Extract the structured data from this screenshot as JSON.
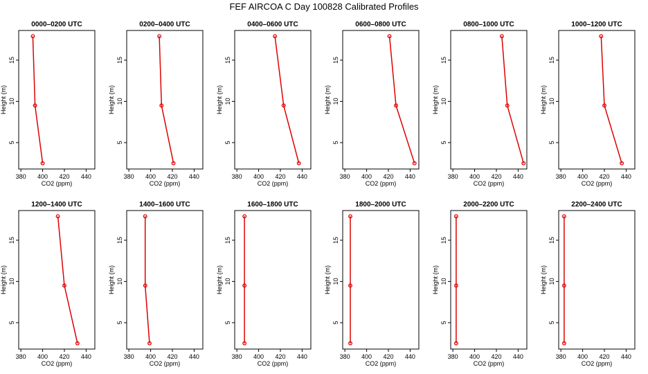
{
  "figure": {
    "title": "FEF AIRCOA C  Day 100828  Calibrated Profiles"
  },
  "chart_data": [
    {
      "type": "line",
      "title": "0000–0200 UTC",
      "xlabel": "CO2 (ppm)",
      "ylabel": "Height (m)",
      "xlim": [
        378,
        448
      ],
      "ylim": [
        1.8,
        18.6
      ],
      "xticks": [
        380,
        400,
        420,
        440
      ],
      "yticks": [
        5,
        10,
        15
      ],
      "series": [
        {
          "name": "profile",
          "x": [
            391,
            393,
            400
          ],
          "y": [
            17.9,
            9.5,
            2.5
          ]
        }
      ]
    },
    {
      "type": "line",
      "title": "0200–0400 UTC",
      "xlabel": "CO2 (ppm)",
      "ylabel": "Height (m)",
      "xlim": [
        378,
        448
      ],
      "ylim": [
        1.8,
        18.6
      ],
      "xticks": [
        380,
        400,
        420,
        440
      ],
      "yticks": [
        5,
        10,
        15
      ],
      "series": [
        {
          "name": "profile",
          "x": [
            408,
            410,
            421
          ],
          "y": [
            17.9,
            9.5,
            2.5
          ]
        }
      ]
    },
    {
      "type": "line",
      "title": "0400–0600 UTC",
      "xlabel": "CO2 (ppm)",
      "ylabel": "Height (m)",
      "xlim": [
        378,
        448
      ],
      "ylim": [
        1.8,
        18.6
      ],
      "xticks": [
        380,
        400,
        420,
        440
      ],
      "yticks": [
        5,
        10,
        15
      ],
      "series": [
        {
          "name": "profile",
          "x": [
            415,
            423,
            437
          ],
          "y": [
            17.9,
            9.5,
            2.5
          ]
        }
      ]
    },
    {
      "type": "line",
      "title": "0600–0800 UTC",
      "xlabel": "CO2 (ppm)",
      "ylabel": "Height (m)",
      "xlim": [
        378,
        448
      ],
      "ylim": [
        1.8,
        18.6
      ],
      "xticks": [
        380,
        400,
        420,
        440
      ],
      "yticks": [
        5,
        10,
        15
      ],
      "series": [
        {
          "name": "profile",
          "x": [
            421,
            427,
            444
          ],
          "y": [
            17.9,
            9.5,
            2.5
          ]
        }
      ]
    },
    {
      "type": "line",
      "title": "0800–1000 UTC",
      "xlabel": "CO2 (ppm)",
      "ylabel": "Height (m)",
      "xlim": [
        378,
        448
      ],
      "ylim": [
        1.8,
        18.6
      ],
      "xticks": [
        380,
        400,
        420,
        440
      ],
      "yticks": [
        5,
        10,
        15
      ],
      "series": [
        {
          "name": "profile",
          "x": [
            425,
            430,
            445
          ],
          "y": [
            17.9,
            9.5,
            2.5
          ]
        }
      ]
    },
    {
      "type": "line",
      "title": "1000–1200 UTC",
      "xlabel": "CO2 (ppm)",
      "ylabel": "Height (m)",
      "xlim": [
        378,
        448
      ],
      "ylim": [
        1.8,
        18.6
      ],
      "xticks": [
        380,
        400,
        420,
        440
      ],
      "yticks": [
        5,
        10,
        15
      ],
      "series": [
        {
          "name": "profile",
          "x": [
            417,
            420,
            436
          ],
          "y": [
            17.9,
            9.5,
            2.5
          ]
        }
      ]
    },
    {
      "type": "line",
      "title": "1200–1400 UTC",
      "xlabel": "CO2 (ppm)",
      "ylabel": "Height (m)",
      "xlim": [
        378,
        448
      ],
      "ylim": [
        1.8,
        18.6
      ],
      "xticks": [
        380,
        400,
        420,
        440
      ],
      "yticks": [
        5,
        10,
        15
      ],
      "series": [
        {
          "name": "profile",
          "x": [
            414,
            420,
            432
          ],
          "y": [
            17.9,
            9.5,
            2.5
          ]
        }
      ]
    },
    {
      "type": "line",
      "title": "1400–1600 UTC",
      "xlabel": "CO2 (ppm)",
      "ylabel": "Height (m)",
      "xlim": [
        378,
        448
      ],
      "ylim": [
        1.8,
        18.6
      ],
      "xticks": [
        380,
        400,
        420,
        440
      ],
      "yticks": [
        5,
        10,
        15
      ],
      "series": [
        {
          "name": "profile",
          "x": [
            395,
            395,
            399
          ],
          "y": [
            17.9,
            9.5,
            2.5
          ]
        }
      ]
    },
    {
      "type": "line",
      "title": "1600–1800 UTC",
      "xlabel": "CO2 (ppm)",
      "ylabel": "Height (m)",
      "xlim": [
        378,
        448
      ],
      "ylim": [
        1.8,
        18.6
      ],
      "xticks": [
        380,
        400,
        420,
        440
      ],
      "yticks": [
        5,
        10,
        15
      ],
      "series": [
        {
          "name": "profile",
          "x": [
            387,
            387,
            387
          ],
          "y": [
            17.9,
            9.5,
            2.5
          ]
        }
      ]
    },
    {
      "type": "line",
      "title": "1800–2000 UTC",
      "xlabel": "CO2 (ppm)",
      "ylabel": "Height (m)",
      "xlim": [
        378,
        448
      ],
      "ylim": [
        1.8,
        18.6
      ],
      "xticks": [
        380,
        400,
        420,
        440
      ],
      "yticks": [
        5,
        10,
        15
      ],
      "series": [
        {
          "name": "profile",
          "x": [
            385,
            385,
            385
          ],
          "y": [
            17.9,
            9.5,
            2.5
          ]
        }
      ]
    },
    {
      "type": "line",
      "title": "2000–2200 UTC",
      "xlabel": "CO2 (ppm)",
      "ylabel": "Height (m)",
      "xlim": [
        378,
        448
      ],
      "ylim": [
        1.8,
        18.6
      ],
      "xticks": [
        380,
        400,
        420,
        440
      ],
      "yticks": [
        5,
        10,
        15
      ],
      "series": [
        {
          "name": "profile",
          "x": [
            383,
            383,
            383
          ],
          "y": [
            17.9,
            9.5,
            2.5
          ]
        }
      ]
    },
    {
      "type": "line",
      "title": "2200–2400 UTC",
      "xlabel": "CO2 (ppm)",
      "ylabel": "Height (m)",
      "xlim": [
        378,
        448
      ],
      "ylim": [
        1.8,
        18.6
      ],
      "xticks": [
        380,
        400,
        420,
        440
      ],
      "yticks": [
        5,
        10,
        15
      ],
      "series": [
        {
          "name": "profile",
          "x": [
            383,
            383,
            383
          ],
          "y": [
            17.9,
            9.5,
            2.5
          ]
        }
      ]
    }
  ],
  "style": {
    "line_color": "#dd0000",
    "axis_color": "#000000",
    "background": "#ffffff"
  }
}
